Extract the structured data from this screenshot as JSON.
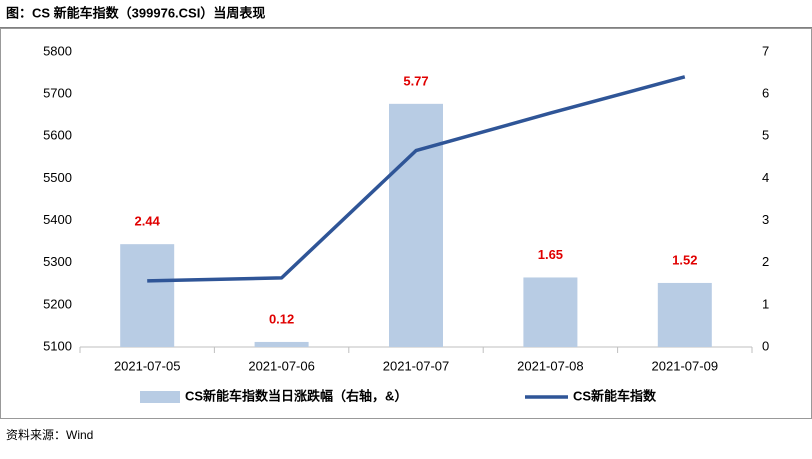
{
  "title": "图：CS 新能车指数（399976.CSI）当周表现",
  "source": "资料来源：Wind",
  "chart_data": {
    "type": "bar-line",
    "categories": [
      "2021-07-05",
      "2021-07-06",
      "2021-07-07",
      "2021-07-08",
      "2021-07-09"
    ],
    "series": [
      {
        "name": "CS新能车指数当日涨跌幅（右轴，&）",
        "type": "bar",
        "axis": "y2",
        "color": "#b8cce4",
        "label_color": "#e00000",
        "values": [
          2.44,
          0.12,
          5.77,
          1.65,
          1.52
        ]
      },
      {
        "name": "CS新能车指数",
        "type": "line",
        "color": "#2f5597",
        "values": [
          5257,
          5264,
          5566,
          5655,
          5741
        ]
      }
    ],
    "ylim": [
      5100,
      5800
    ],
    "yticks": [
      5100,
      5200,
      5300,
      5400,
      5500,
      5600,
      5700,
      5800
    ],
    "y2lim": [
      0,
      7
    ],
    "y2ticks": [
      0,
      1,
      2,
      3,
      4,
      5,
      6,
      7
    ]
  }
}
